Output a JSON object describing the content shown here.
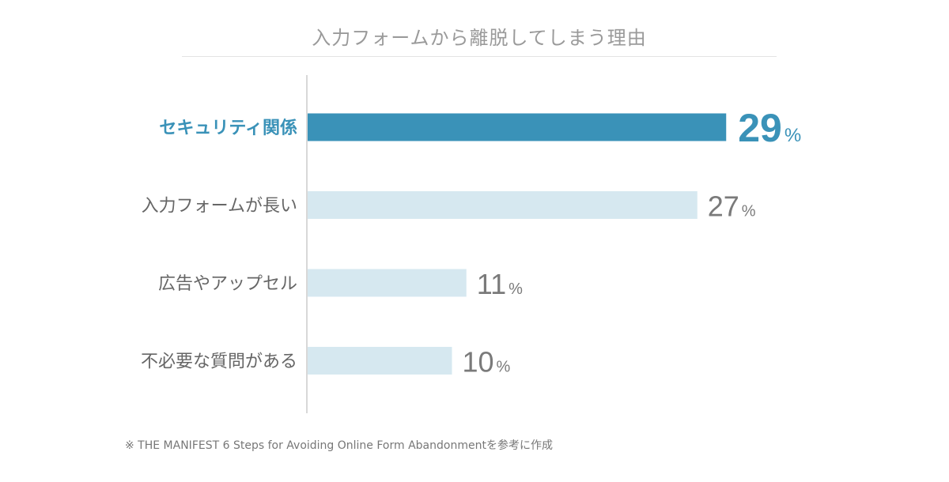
{
  "chart_data": {
    "type": "bar",
    "orientation": "horizontal",
    "title": "入力フォームから離脱してしまう理由",
    "categories": [
      "セキュリティ関係",
      "入力フォームが長い",
      "広告やアップセル",
      "不必要な質問がある"
    ],
    "values": [
      29,
      27,
      11,
      10
    ],
    "value_labels": [
      "29",
      "27",
      "11",
      "10"
    ],
    "unit": "%",
    "highlight_index": 0,
    "xlim": [
      0,
      30
    ],
    "grid": false
  },
  "colors": {
    "highlight": "#3a92b8",
    "bar": "#d6e8f0",
    "label": "#666666",
    "value": "#7a7a7a",
    "axis": "#cccccc"
  },
  "source": "※ THE MANIFEST  6 Steps for Avoiding Online Form Abandonmentを参考に作成"
}
